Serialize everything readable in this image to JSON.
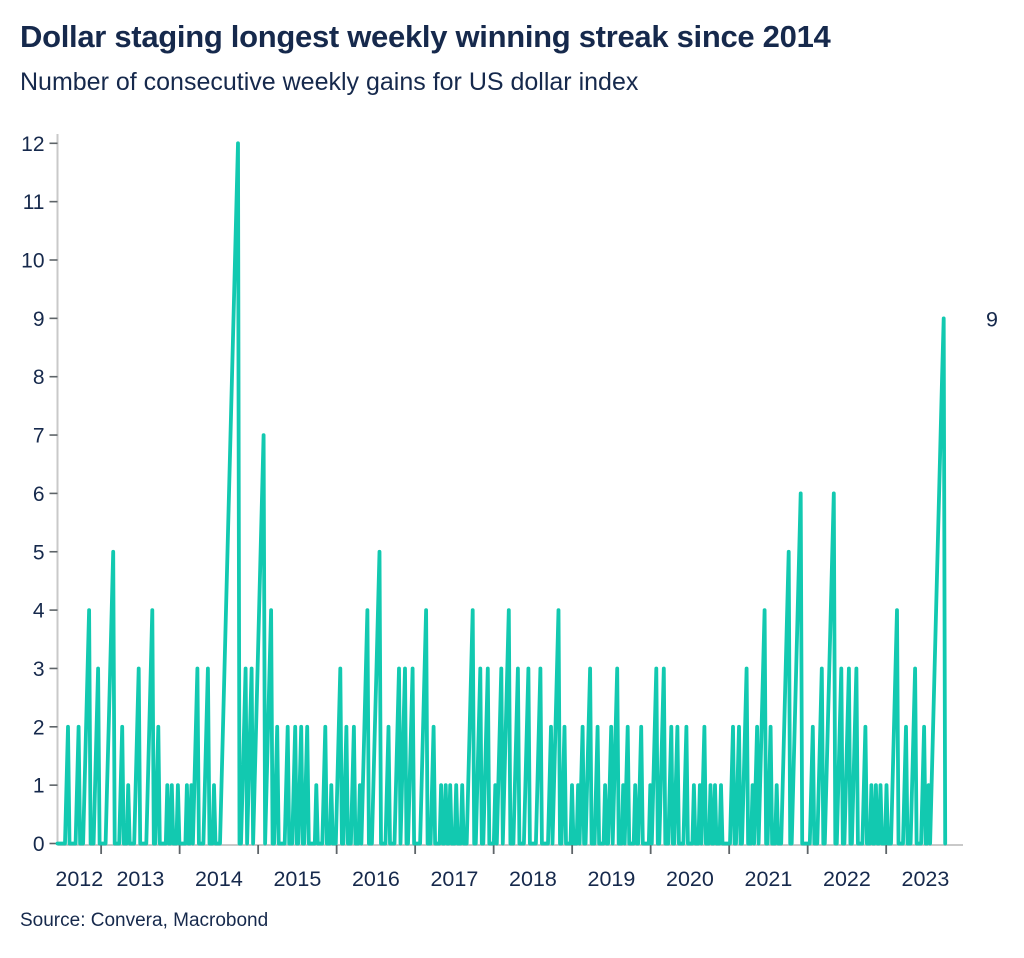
{
  "header": {
    "title": "Dollar staging longest weekly winning streak since 2014",
    "subtitle": "Number of consecutive weekly gains for US dollar index"
  },
  "footer": {
    "source": "Source: Convera, Macrobond"
  },
  "colors": {
    "accent_teal": "#12C9B0",
    "navy_text": "#16294C",
    "axis_line": "#C9C9C9",
    "tick_mark": "#5E6468"
  },
  "chart_data": {
    "type": "line",
    "title": "Dollar staging longest weekly winning streak since 2014",
    "subtitle": "Number of consecutive weekly gains for US dollar index",
    "source": "Source: Convera, Macrobond",
    "ylim": [
      0,
      12
    ],
    "y_ticks": [
      0,
      1,
      2,
      3,
      4,
      5,
      6,
      7,
      8,
      9,
      10,
      11,
      12
    ],
    "x_categories": [
      "2012",
      "2013",
      "2014",
      "2015",
      "2016",
      "2017",
      "2018",
      "2019",
      "2020",
      "2021",
      "2022",
      "2023"
    ],
    "grid": "off",
    "legend": "none",
    "series": [
      {
        "name": "Consecutive weekly gains, US dollar index",
        "color": "#12C9B0",
        "frequency": "weekly",
        "start": "mid-2012",
        "end": "September 2023",
        "encoding": "pairs [weeks_at_zero_before_streak, streak_peak]; each streak plots 1,2,...,peak on successive weeks, then resets to 0",
        "streaks": [
          [
            5,
            2
          ],
          [
            5,
            2
          ],
          [
            3,
            4
          ],
          [
            3,
            3
          ],
          [
            5,
            5
          ],
          [
            4,
            2
          ],
          [
            3,
            1
          ],
          [
            4,
            3
          ],
          [
            5,
            4
          ],
          [
            2,
            2
          ],
          [
            5,
            1
          ],
          [
            2,
            1
          ],
          [
            3,
            1
          ],
          [
            5,
            1
          ],
          [
            2,
            1
          ],
          [
            1,
            3
          ],
          [
            4,
            3
          ],
          [
            3,
            1
          ],
          [
            4,
            12
          ],
          [
            2,
            3
          ],
          [
            1,
            3
          ],
          [
            1,
            7
          ],
          [
            1,
            4
          ],
          [
            2,
            2
          ],
          [
            5,
            2
          ],
          [
            3,
            2
          ],
          [
            2,
            2
          ],
          [
            2,
            2
          ],
          [
            5,
            1
          ],
          [
            4,
            2
          ],
          [
            3,
            1
          ],
          [
            3,
            3
          ],
          [
            2,
            2
          ],
          [
            3,
            2
          ],
          [
            3,
            1
          ],
          [
            1,
            4
          ],
          [
            3,
            5
          ],
          [
            4,
            2
          ],
          [
            4,
            3
          ],
          [
            1,
            3
          ],
          [
            2,
            3
          ],
          [
            5,
            4
          ],
          [
            3,
            2
          ],
          [
            4,
            1
          ],
          [
            2,
            1
          ],
          [
            2,
            1
          ],
          [
            3,
            1
          ],
          [
            3,
            1
          ],
          [
            3,
            4
          ],
          [
            2,
            3
          ],
          [
            2,
            3
          ],
          [
            4,
            1
          ],
          [
            1,
            3
          ],
          [
            1,
            4
          ],
          [
            3,
            3
          ],
          [
            4,
            3
          ],
          [
            5,
            3
          ],
          [
            5,
            2
          ],
          [
            1,
            4
          ],
          [
            2,
            2
          ],
          [
            4,
            1
          ],
          [
            3,
            1
          ],
          [
            1,
            2
          ],
          [
            2,
            3
          ],
          [
            3,
            2
          ],
          [
            4,
            1
          ],
          [
            2,
            2
          ],
          [
            1,
            3
          ],
          [
            3,
            1
          ],
          [
            1,
            2
          ],
          [
            4,
            1
          ],
          [
            2,
            2
          ],
          [
            5,
            1
          ],
          [
            1,
            3
          ],
          [
            2,
            3
          ],
          [
            3,
            2
          ],
          [
            2,
            2
          ],
          [
            4,
            2
          ],
          [
            4,
            1
          ],
          [
            3,
            1
          ],
          [
            1,
            2
          ],
          [
            3,
            1
          ],
          [
            2,
            1
          ],
          [
            3,
            1
          ],
          [
            6,
            2
          ],
          [
            2,
            2
          ],
          [
            2,
            3
          ],
          [
            3,
            1
          ],
          [
            1,
            2
          ],
          [
            1,
            4
          ],
          [
            2,
            2
          ],
          [
            3,
            1
          ],
          [
            3,
            5
          ],
          [
            2,
            6
          ],
          [
            6,
            2
          ],
          [
            3,
            3
          ],
          [
            2,
            6
          ],
          [
            2,
            3
          ],
          [
            2,
            3
          ],
          [
            2,
            3
          ],
          [
            4,
            2
          ],
          [
            3,
            1
          ],
          [
            2,
            1
          ],
          [
            2,
            1
          ],
          [
            3,
            1
          ],
          [
            3,
            4
          ],
          [
            4,
            2
          ],
          [
            3,
            3
          ],
          [
            4,
            2
          ],
          [
            2,
            1
          ],
          [
            1,
            9
          ]
        ],
        "notable_peaks": [
          {
            "year": "2014",
            "value": 12
          },
          {
            "year": "2015",
            "value": 7
          },
          {
            "year": "2021",
            "value": 6
          },
          {
            "year": "2022",
            "value": 6
          },
          {
            "year": "2023",
            "value": 9
          }
        ]
      }
    ],
    "annotation": {
      "text": "9",
      "value": 9
    }
  }
}
